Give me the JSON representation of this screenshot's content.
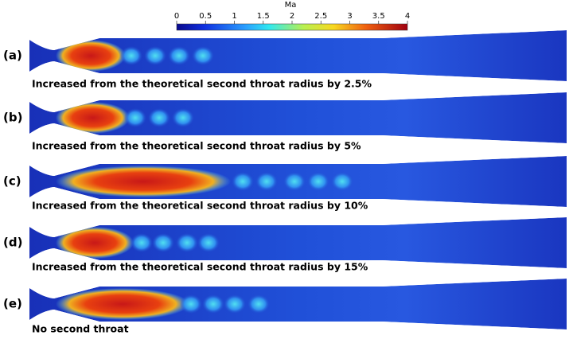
{
  "colorbar": {
    "title": "Ma",
    "lim": [
      0,
      4
    ],
    "ticks": [
      0,
      0.5,
      1,
      1.5,
      2,
      2.5,
      3,
      3.5,
      4
    ]
  },
  "panels": [
    {
      "label": "(a)",
      "caption": "Increased from the theoretical second throat radius by 2.5%"
    },
    {
      "label": "(b)",
      "caption": "Increased from the theoretical second throat radius by 5%"
    },
    {
      "label": "(c)",
      "caption": "Increased from the theoretical second throat radius by 10%"
    },
    {
      "label": "(d)",
      "caption": "Increased from the theoretical second throat radius by 15%"
    },
    {
      "label": "(e)",
      "caption": "No second throat"
    }
  ]
}
